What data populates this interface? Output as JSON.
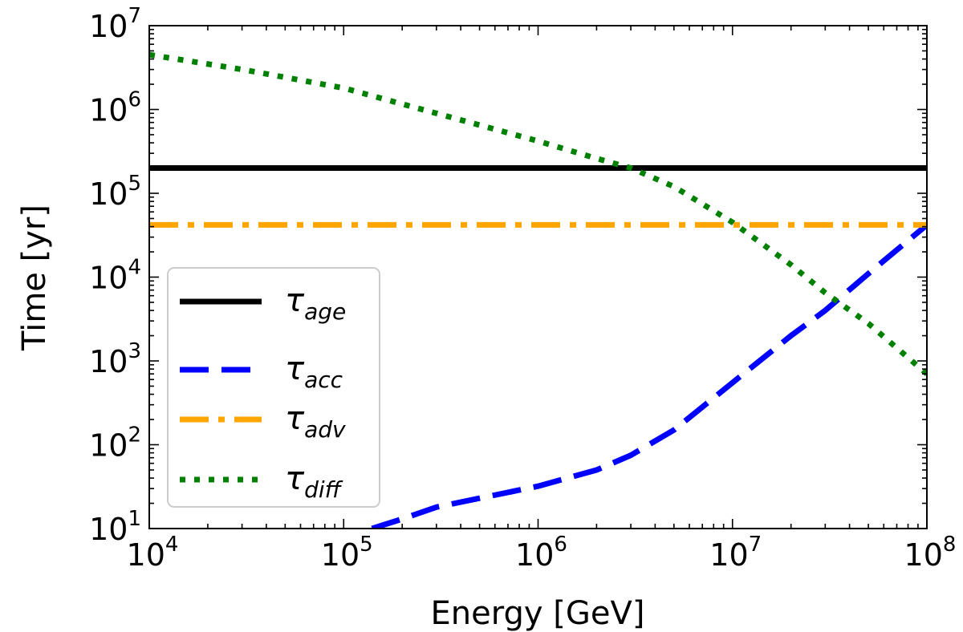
{
  "chart_data": {
    "type": "line",
    "xlabel": "Energy [GeV]",
    "ylabel": "Time [yr]",
    "xscale": "log",
    "yscale": "log",
    "xlim": [
      10000,
      100000000
    ],
    "ylim": [
      10,
      10000000
    ],
    "x_ticks": [
      {
        "base": "10",
        "exp": "4",
        "value": 10000
      },
      {
        "base": "10",
        "exp": "5",
        "value": 100000
      },
      {
        "base": "10",
        "exp": "6",
        "value": 1000000
      },
      {
        "base": "10",
        "exp": "7",
        "value": 10000000
      },
      {
        "base": "10",
        "exp": "8",
        "value": 100000000
      }
    ],
    "y_ticks": [
      {
        "base": "10",
        "exp": "1",
        "value": 10
      },
      {
        "base": "10",
        "exp": "2",
        "value": 100
      },
      {
        "base": "10",
        "exp": "3",
        "value": 1000
      },
      {
        "base": "10",
        "exp": "4",
        "value": 10000
      },
      {
        "base": "10",
        "exp": "5",
        "value": 100000
      },
      {
        "base": "10",
        "exp": "6",
        "value": 1000000
      },
      {
        "base": "10",
        "exp": "7",
        "value": 10000000
      }
    ],
    "grid": false,
    "legend_position": "lower-left",
    "series": [
      {
        "label_symbol": "τ",
        "label_sub": "age",
        "color": "#000000",
        "style": "solid",
        "x": [
          10000,
          100000000
        ],
        "y": [
          200000,
          200000
        ]
      },
      {
        "label_symbol": "τ",
        "label_sub": "acc",
        "color": "#0000ff",
        "style": "dashed",
        "x": [
          140000,
          200000,
          300000,
          500000,
          1000000,
          2000000,
          3000000,
          5000000,
          10000000,
          20000000,
          30000000,
          50000000,
          100000000
        ],
        "y": [
          10,
          13,
          18,
          23,
          32,
          50,
          75,
          150,
          550,
          2000,
          4000,
          11000,
          42000
        ]
      },
      {
        "label_symbol": "τ",
        "label_sub": "adv",
        "color": "#ffa500",
        "style": "dashdot",
        "x": [
          10000,
          100000000
        ],
        "y": [
          42000,
          42000
        ]
      },
      {
        "label_symbol": "τ",
        "label_sub": "diff",
        "color": "#008000",
        "style": "dotted",
        "x": [
          10000,
          30000,
          100000,
          300000,
          1000000,
          2000000,
          3000000,
          5000000,
          10000000,
          20000000,
          30000000,
          50000000,
          100000000
        ],
        "y": [
          4500000,
          3000000,
          1800000,
          900000,
          420000,
          260000,
          200000,
          120000,
          45000,
          14000,
          6500,
          2800,
          700
        ]
      }
    ]
  }
}
